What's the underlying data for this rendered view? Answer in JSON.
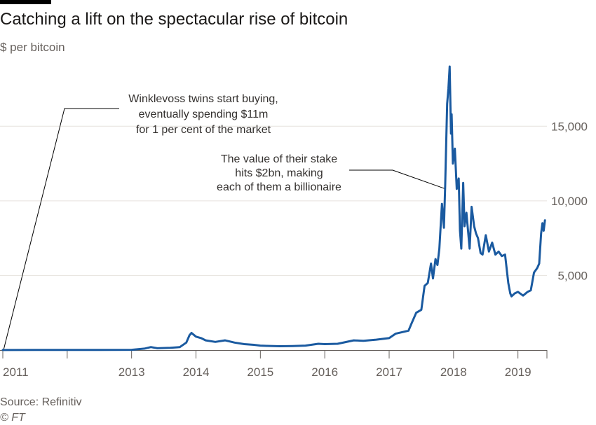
{
  "title": "Catching a lift on the spectacular rise of bitcoin",
  "subtitle": "$ per bitcoin",
  "source": "Source: Refinitiv",
  "credit": "© FT",
  "colors": {
    "line": "#1a5aa0",
    "grid": "#e6e2dd",
    "text": "#66605c",
    "axis": "#66605c"
  },
  "chart_data": {
    "type": "line",
    "title": "Catching a lift on the spectacular rise of bitcoin",
    "ylabel": "$ per bitcoin",
    "xlim": [
      2011.0,
      2019.45
    ],
    "ylim": [
      0,
      19000
    ],
    "y_ticks": [
      5000,
      10000,
      15000
    ],
    "y_tick_labels": [
      "5,000",
      "10,000",
      "15,000"
    ],
    "x_ticks": [
      2011,
      2013,
      2014,
      2015,
      2016,
      2017,
      2018,
      2019
    ],
    "x_tick_labels": [
      "2011",
      "2013",
      "2014",
      "2015",
      "2016",
      "2017",
      "2018",
      "2019"
    ],
    "grid": "horizontal",
    "series": [
      {
        "x": [
          2011.0,
          2011.5,
          2012.0,
          2012.5,
          2013.0,
          2013.2,
          2013.3,
          2013.4,
          2013.6,
          2013.75,
          2013.85,
          2013.9,
          2013.93,
          2014.0,
          2014.08,
          2014.15,
          2014.3,
          2014.45,
          2014.6,
          2014.75,
          2014.9,
          2015.0,
          2015.1,
          2015.3,
          2015.5,
          2015.7,
          2015.9,
          2016.0,
          2016.2,
          2016.45,
          2016.6,
          2016.8,
          2017.0,
          2017.1,
          2017.2,
          2017.3,
          2017.35,
          2017.42,
          2017.5,
          2017.55,
          2017.6,
          2017.65,
          2017.68,
          2017.72,
          2017.75,
          2017.78,
          2017.82,
          2017.85,
          2017.87,
          2017.9,
          2017.92,
          2017.94,
          2017.96,
          2017.97,
          2017.99,
          2018.02,
          2018.05,
          2018.08,
          2018.1,
          2018.12,
          2018.15,
          2018.17,
          2018.2,
          2018.25,
          2018.28,
          2018.32,
          2018.35,
          2018.38,
          2018.42,
          2018.45,
          2018.5,
          2018.55,
          2018.6,
          2018.65,
          2018.7,
          2018.75,
          2018.8,
          2018.85,
          2018.88,
          2018.9,
          2018.95,
          2019.0,
          2019.08,
          2019.15,
          2019.2,
          2019.25,
          2019.3,
          2019.33,
          2019.36,
          2019.38,
          2019.4,
          2019.42
        ],
        "values": [
          5,
          10,
          8,
          10,
          20,
          100,
          200,
          120,
          150,
          200,
          500,
          1000,
          1150,
          900,
          800,
          650,
          550,
          650,
          500,
          400,
          350,
          300,
          280,
          260,
          270,
          300,
          420,
          400,
          420,
          650,
          620,
          700,
          800,
          1100,
          1200,
          1300,
          1800,
          2500,
          2700,
          4300,
          4500,
          5800,
          4800,
          6100,
          5700,
          6800,
          9800,
          8200,
          11000,
          16500,
          17500,
          19000,
          14500,
          15800,
          12500,
          13500,
          10800,
          11500,
          8000,
          6800,
          11200,
          8300,
          9200,
          6800,
          9600,
          8300,
          7800,
          7500,
          6500,
          6400,
          7700,
          6600,
          7200,
          6400,
          6600,
          6300,
          6400,
          4500,
          3800,
          3600,
          3800,
          3900,
          3650,
          3900,
          4000,
          5200,
          5500,
          5800,
          7800,
          8500,
          8000,
          8700
        ]
      }
    ],
    "annotations": [
      {
        "text": [
          "Winklevoss twins start buying,",
          "eventually spending $11m",
          "for 1 per cent of the market"
        ],
        "x": 2011.0,
        "y": 0
      },
      {
        "text": [
          "The value of their stake",
          "hits $2bn, making",
          "each of them a billionaire"
        ],
        "x": 2017.92,
        "y": 10800
      }
    ]
  }
}
